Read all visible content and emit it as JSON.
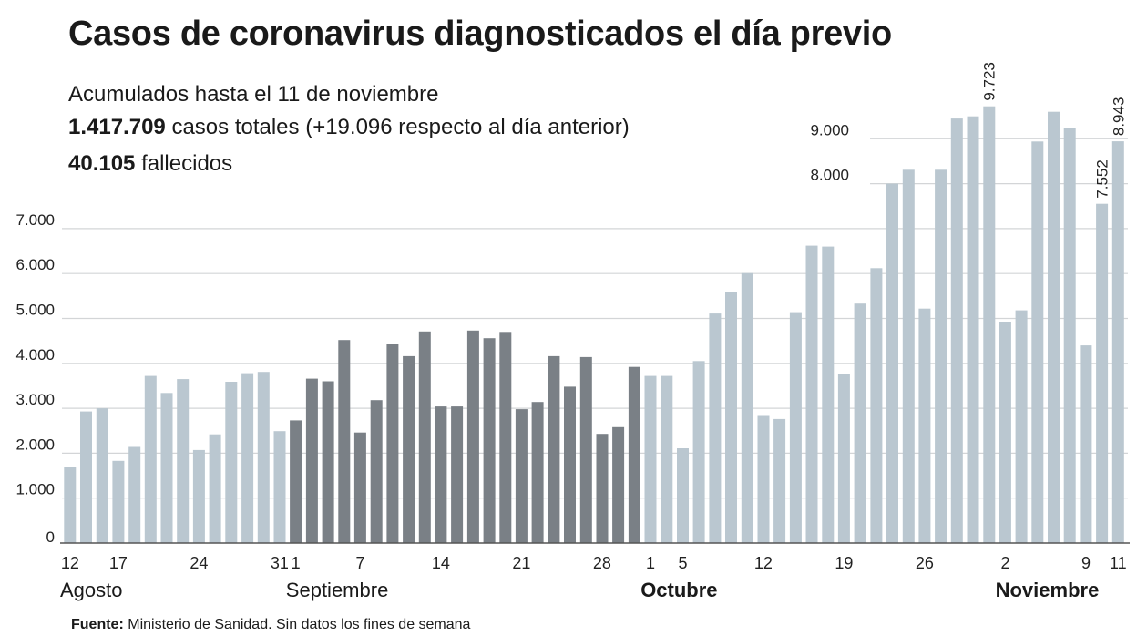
{
  "header": {
    "title": "Casos de coronavirus diagnosticados el día previo",
    "line1": "Acumulados hasta el 11 de noviembre",
    "total_cases_value": "1.417.709",
    "total_cases_text": "casos totales (+19.096 respecto al día anterior)",
    "deaths_value": "40.105",
    "deaths_text": "fallecidos"
  },
  "source": {
    "label": "Fuente:",
    "text": "Ministerio de Sanidad. Sin datos los fines de semana"
  },
  "colors": {
    "light": "#bac7d0",
    "dark": "#7a8086",
    "grid": "#d3d5d7",
    "axis": "#555555"
  },
  "chart_data": {
    "type": "bar",
    "title": "Casos de coronavirus diagnosticados el día previo",
    "xlabel": "",
    "ylabel": "",
    "ylim": [
      0,
      10000
    ],
    "grid": true,
    "y_ticks": [
      {
        "value": 0,
        "label": "0"
      },
      {
        "value": 1000,
        "label": "1.000"
      },
      {
        "value": 2000,
        "label": "2.000"
      },
      {
        "value": 3000,
        "label": "3.000"
      },
      {
        "value": 4000,
        "label": "4.000"
      },
      {
        "value": 5000,
        "label": "5.000"
      },
      {
        "value": 6000,
        "label": "6.000"
      },
      {
        "value": 7000,
        "label": "7.000"
      },
      {
        "value": 8000,
        "label": "8.000"
      },
      {
        "value": 9000,
        "label": "9.000"
      }
    ],
    "categories": [
      "12 ago",
      "13 ago",
      "14 ago",
      "17 ago",
      "18 ago",
      "19 ago",
      "20 ago",
      "21 ago",
      "24 ago",
      "25 ago",
      "26 ago",
      "27 ago",
      "28 ago",
      "31 ago",
      "1 sep",
      "2 sep",
      "3 sep",
      "4 sep",
      "7 sep",
      "8 sep",
      "9 sep",
      "10 sep",
      "11 sep",
      "14 sep",
      "15 sep",
      "16 sep",
      "17 sep",
      "18 sep",
      "21 sep",
      "22 sep",
      "23 sep",
      "24 sep",
      "25 sep",
      "28 sep",
      "29 sep",
      "30 sep",
      "1 oct",
      "2 oct",
      "5 oct",
      "6 oct",
      "7 oct",
      "8 oct",
      "9 oct",
      "12 oct",
      "13 oct",
      "14 oct",
      "15 oct",
      "16 oct",
      "19 oct",
      "20 oct",
      "21 oct",
      "22 oct",
      "23 oct",
      "26 oct",
      "27 oct",
      "28 oct",
      "29 oct",
      "30 oct",
      "2 nov",
      "3 nov",
      "4 nov",
      "5 nov",
      "6 nov",
      "9 nov",
      "10 nov",
      "11 nov"
    ],
    "values": [
      1700,
      2930,
      3000,
      1830,
      2140,
      3720,
      3340,
      3650,
      2070,
      2420,
      3590,
      3780,
      3810,
      2490,
      2730,
      3660,
      3600,
      4520,
      2460,
      3180,
      4430,
      4160,
      4710,
      3040,
      3040,
      4730,
      4560,
      4700,
      2980,
      3140,
      4160,
      3480,
      4140,
      2430,
      2580,
      3920,
      3720,
      3720,
      2110,
      4050,
      5110,
      5590,
      6010,
      2830,
      2760,
      5140,
      6620,
      6600,
      3770,
      5330,
      6120,
      8000,
      8310,
      5220,
      8310,
      9450,
      9500,
      9723,
      4930,
      5180,
      8940,
      9600,
      9230,
      4400,
      7552,
      8943
    ],
    "dark_range": [
      14,
      35
    ],
    "annotations": [
      {
        "index": 57,
        "label": "9.723"
      },
      {
        "index": 64,
        "label": "7.552"
      },
      {
        "index": 65,
        "label": "8.943"
      }
    ],
    "x_ticks": [
      {
        "index": 0,
        "label": "12"
      },
      {
        "index": 3,
        "label": "17"
      },
      {
        "index": 8,
        "label": "24"
      },
      {
        "index": 13,
        "label": "31"
      },
      {
        "index": 14,
        "label": "1"
      },
      {
        "index": 18,
        "label": "7"
      },
      {
        "index": 23,
        "label": "14"
      },
      {
        "index": 28,
        "label": "21"
      },
      {
        "index": 33,
        "label": "28"
      },
      {
        "index": 36,
        "label": "1"
      },
      {
        "index": 38,
        "label": "5"
      },
      {
        "index": 43,
        "label": "12"
      },
      {
        "index": 48,
        "label": "19"
      },
      {
        "index": 53,
        "label": "26"
      },
      {
        "index": 58,
        "label": "2"
      },
      {
        "index": 63,
        "label": "9"
      },
      {
        "index": 65,
        "label": "11"
      }
    ],
    "months": [
      {
        "index": 0,
        "label": "Agosto",
        "bold": false
      },
      {
        "index": 14,
        "label": "Septiembre",
        "bold": false
      },
      {
        "index": 36,
        "label": "Octubre",
        "bold": true
      },
      {
        "index": 58,
        "label": "Noviembre",
        "bold": true
      }
    ]
  }
}
